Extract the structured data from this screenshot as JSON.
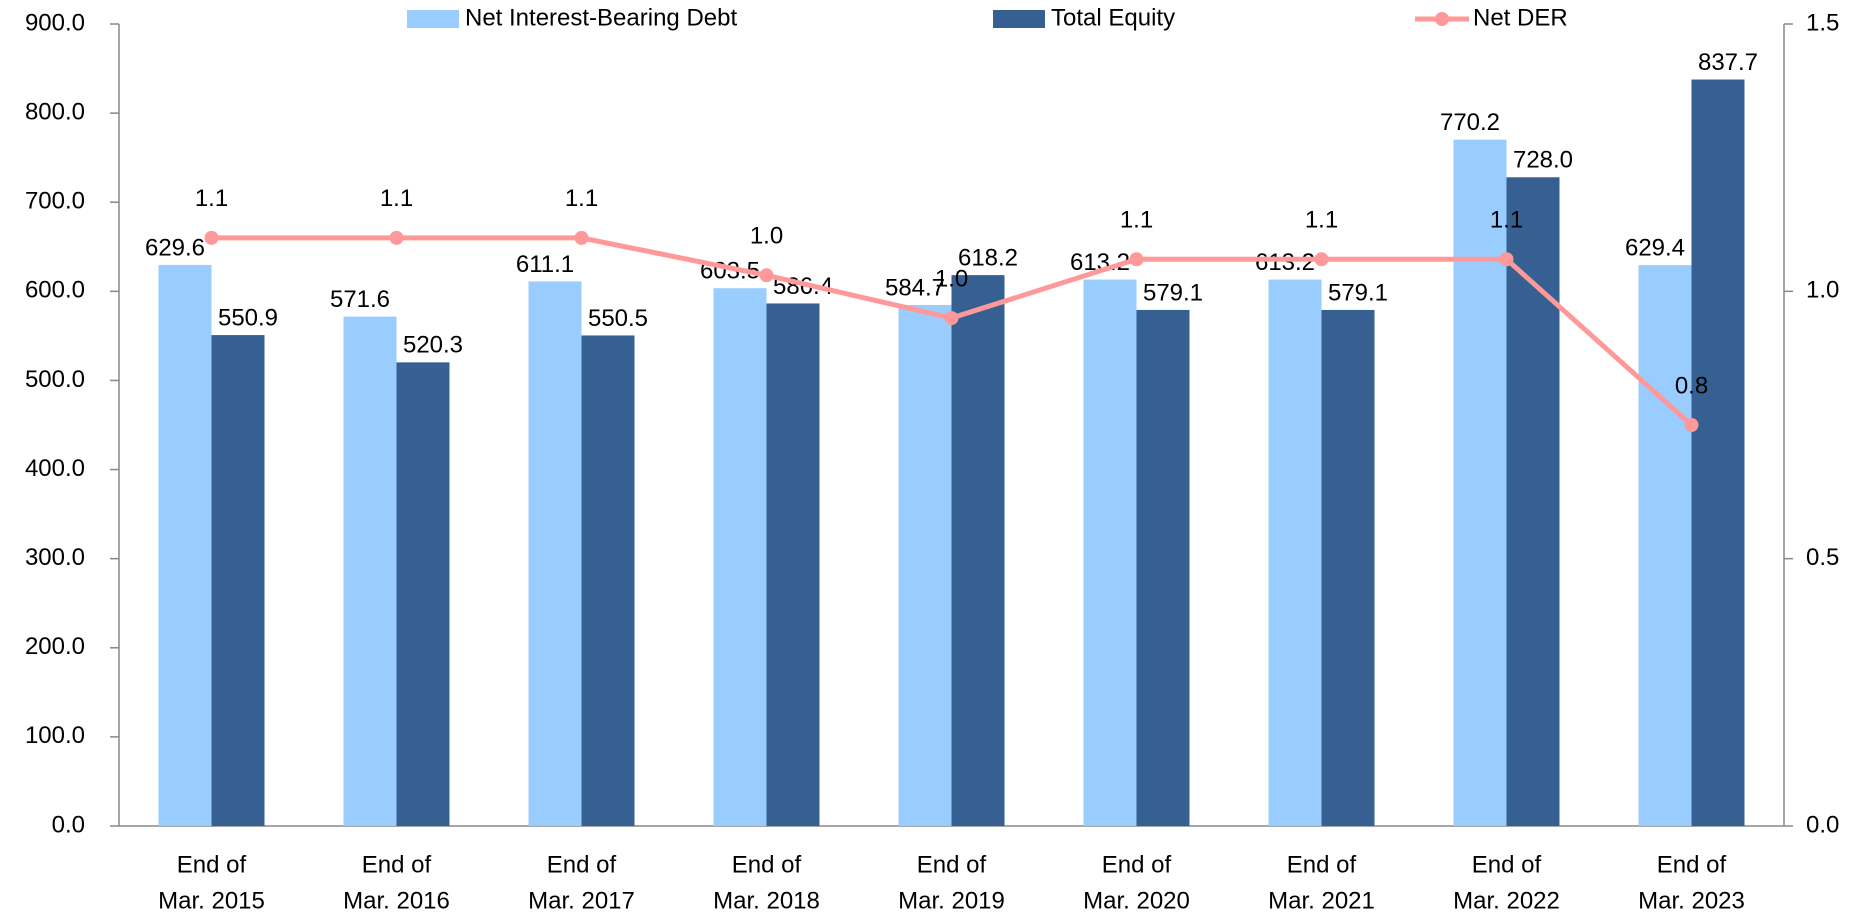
{
  "chart_data": {
    "type": "bar",
    "categories": [
      [
        "End of",
        "Mar. 2015"
      ],
      [
        "End of",
        "Mar. 2016"
      ],
      [
        "End of",
        "Mar. 2017"
      ],
      [
        "End of",
        "Mar. 2018"
      ],
      [
        "End of",
        "Mar. 2019"
      ],
      [
        "End of",
        "Mar. 2020"
      ],
      [
        "End of",
        "Mar. 2021"
      ],
      [
        "End of",
        "Mar. 2022"
      ],
      [
        "End of",
        "Mar. 2023"
      ]
    ],
    "series": [
      {
        "name": "Net Interest-Bearing Debt",
        "type": "bar",
        "color": "#99ccff",
        "values": [
          629.6,
          571.6,
          611.1,
          603.5,
          584.7,
          613.2,
          613.2,
          770.2,
          629.4
        ],
        "value_labels": [
          "629.6",
          "571.6",
          "611.1",
          "603.5",
          "584.7",
          "613.2",
          "613.2",
          "770.2",
          "629.4"
        ]
      },
      {
        "name": "Total Equity",
        "type": "bar",
        "color": "#366092",
        "values": [
          550.9,
          520.3,
          550.5,
          586.4,
          618.2,
          579.1,
          579.1,
          728,
          837.7
        ],
        "value_labels": [
          "550.9",
          "520.3",
          "550.5",
          "586.4",
          "618.2",
          "579.1",
          "579.1",
          "728.0",
          "837.7"
        ]
      },
      {
        "name": "Net DER",
        "type": "line",
        "axis": "y2",
        "color": "#ff9999",
        "values": [
          1.1,
          1.1,
          1.1,
          1.03,
          0.95,
          1.06,
          1.06,
          1.06,
          0.75
        ],
        "value_labels": [
          "1.1",
          "1.1",
          "1.1",
          "1.0",
          "1.0",
          "1.1",
          "1.1",
          "1.1",
          "0.8"
        ]
      }
    ],
    "ylim": [
      0,
      900
    ],
    "yticks": [
      {
        "value": 0,
        "label": "0.0"
      },
      {
        "value": 100,
        "label": "100.0"
      },
      {
        "value": 200,
        "label": "200.0"
      },
      {
        "value": 300,
        "label": "300.0"
      },
      {
        "value": 400,
        "label": "400.0"
      },
      {
        "value": 500,
        "label": "500.0"
      },
      {
        "value": 600,
        "label": "600.0"
      },
      {
        "value": 700,
        "label": "700.0"
      },
      {
        "value": 800,
        "label": "800.0"
      },
      {
        "value": 900,
        "label": "900.0"
      }
    ],
    "y2lim": [
      0,
      1.5
    ],
    "y2ticks": [
      {
        "value": 0,
        "label": "0.0"
      },
      {
        "value": 0.5,
        "label": "0.5"
      },
      {
        "value": 1,
        "label": "1.0"
      },
      {
        "value": 1.5,
        "label": "1.5"
      }
    ],
    "grid": false,
    "legend": "top"
  }
}
